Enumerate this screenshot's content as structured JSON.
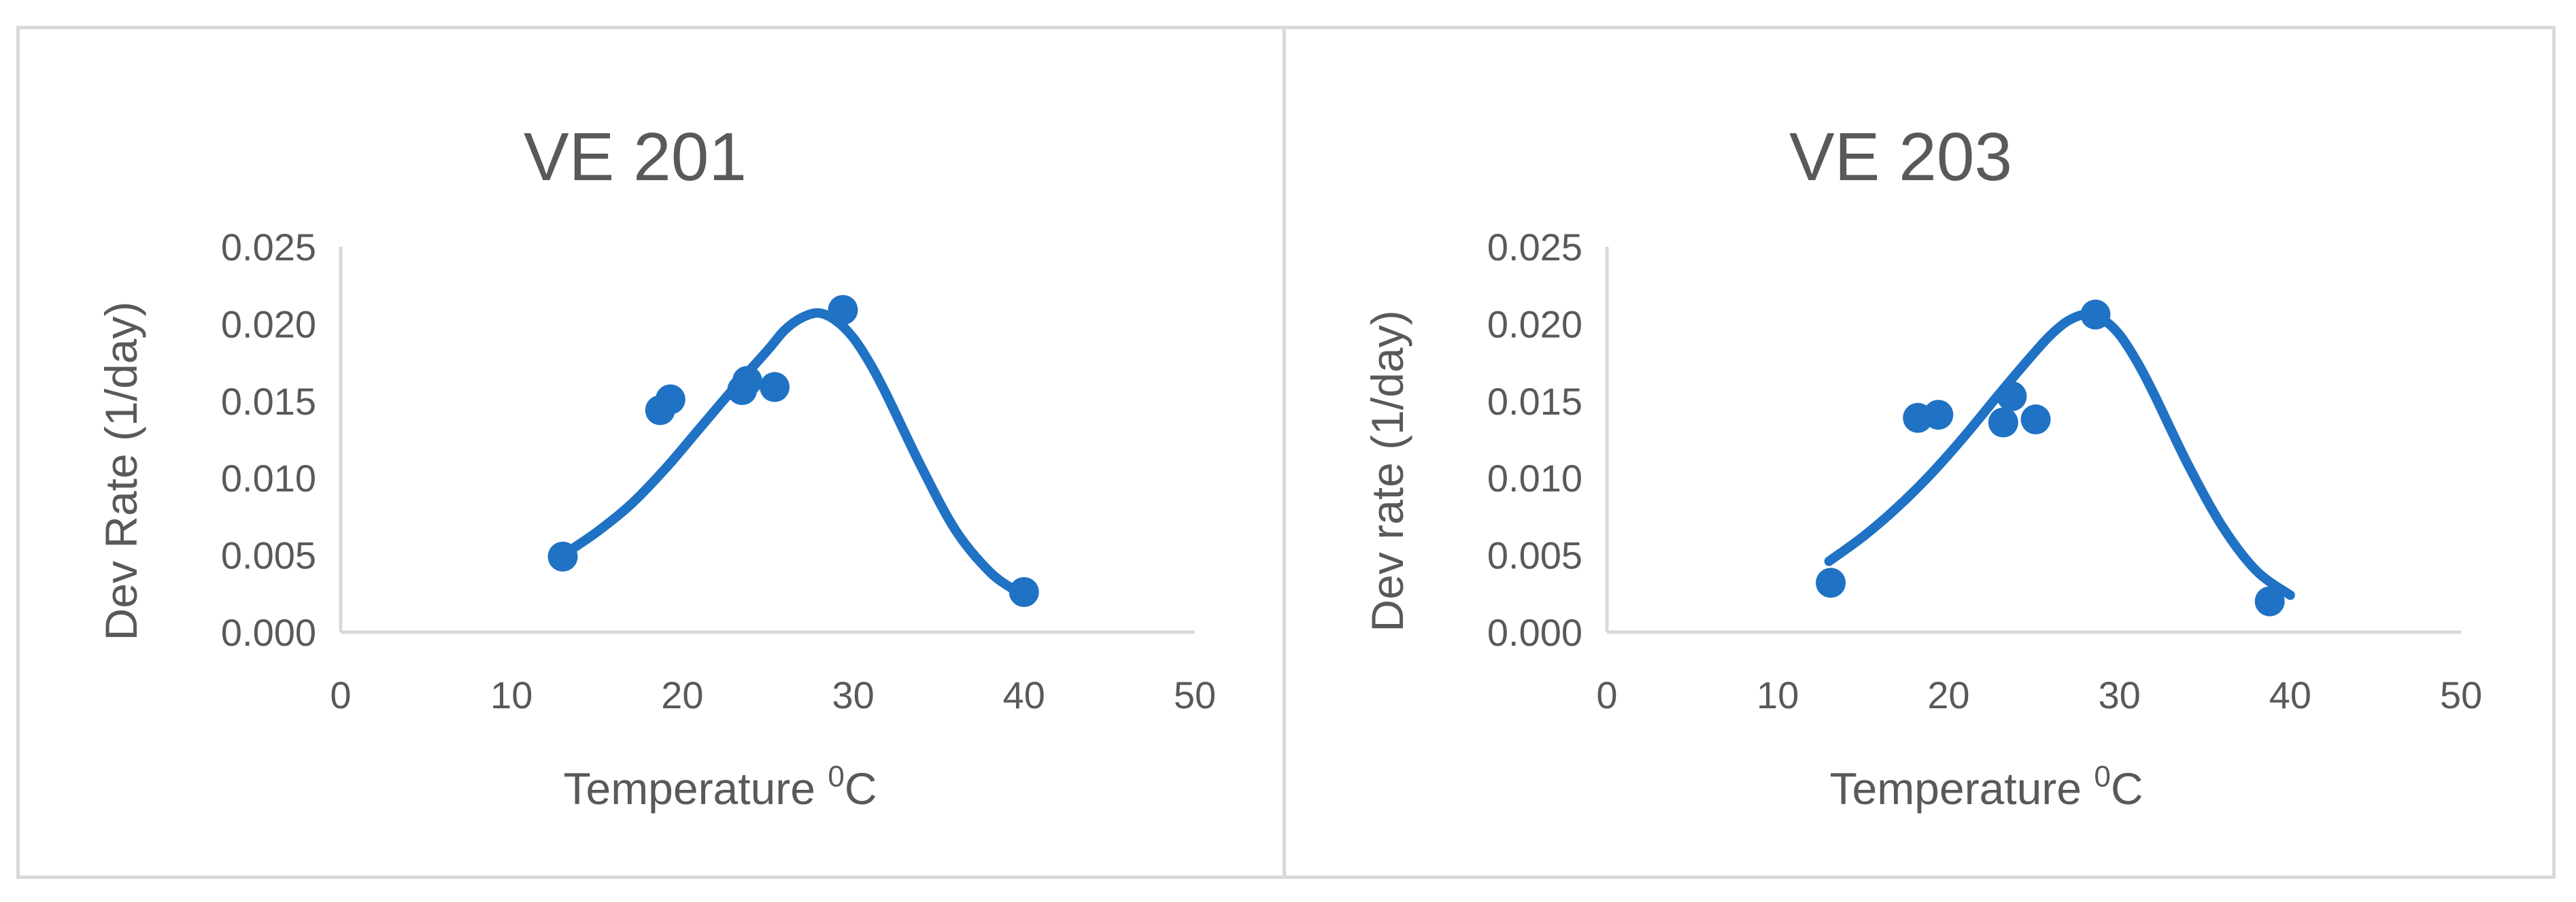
{
  "colors": {
    "series": "#1f72c4",
    "text": "#595959",
    "axis": "#d9d9d9",
    "border": "#d9d9d9"
  },
  "chart_data": [
    {
      "type": "scatter",
      "title": "VE 201",
      "xlabel": "Temperature",
      "xlabel_sup": "0",
      "xlabel_unit": "C",
      "ylabel": "Dev Rate (1/day)",
      "xlim": [
        0,
        50
      ],
      "ylim": [
        0,
        0.025
      ],
      "xticks": [
        "0",
        "10",
        "20",
        "30",
        "40",
        "50"
      ],
      "yticks": [
        "0.000",
        "0.005",
        "0.010",
        "0.015",
        "0.020",
        "0.025"
      ],
      "grid": false,
      "legend": "none",
      "points": [
        {
          "x": 13,
          "y": 0.0049
        },
        {
          "x": 18.7,
          "y": 0.0144
        },
        {
          "x": 19.3,
          "y": 0.0151
        },
        {
          "x": 23.5,
          "y": 0.0157
        },
        {
          "x": 23.8,
          "y": 0.0163
        },
        {
          "x": 25.4,
          "y": 0.0159
        },
        {
          "x": 29.4,
          "y": 0.0209
        },
        {
          "x": 40,
          "y": 0.0026
        }
      ],
      "fit_curve": {
        "x": [
          13,
          15,
          17,
          19,
          21,
          23,
          25,
          26,
          27,
          28,
          29,
          30,
          31,
          32,
          34,
          36,
          38,
          39.5
        ],
        "y": [
          0.005,
          0.0065,
          0.0083,
          0.0106,
          0.0132,
          0.0158,
          0.0183,
          0.0196,
          0.0204,
          0.0207,
          0.0202,
          0.0191,
          0.0174,
          0.0153,
          0.0107,
          0.0066,
          0.0039,
          0.0027
        ]
      }
    },
    {
      "type": "scatter",
      "title": "VE 203",
      "xlabel": "Temperature",
      "xlabel_sup": "0",
      "xlabel_unit": "C",
      "ylabel": "Dev rate (1/day)",
      "xlim": [
        0,
        50
      ],
      "ylim": [
        0,
        0.025
      ],
      "xticks": [
        "0",
        "10",
        "20",
        "30",
        "40",
        "50"
      ],
      "yticks": [
        "0.000",
        "0.005",
        "0.010",
        "0.015",
        "0.020",
        "0.025"
      ],
      "grid": false,
      "legend": "none",
      "points": [
        {
          "x": 13.1,
          "y": 0.0032
        },
        {
          "x": 18.2,
          "y": 0.0139
        },
        {
          "x": 19.4,
          "y": 0.0141
        },
        {
          "x": 23.2,
          "y": 0.0136
        },
        {
          "x": 23.7,
          "y": 0.0153
        },
        {
          "x": 25.1,
          "y": 0.0138
        },
        {
          "x": 28.6,
          "y": 0.0206
        },
        {
          "x": 38.8,
          "y": 0.002
        }
      ],
      "fit_curve": {
        "x": [
          13,
          15,
          17,
          19,
          21,
          23,
          25,
          26,
          27,
          28,
          29,
          30,
          31,
          32,
          34,
          36,
          38,
          40
        ],
        "y": [
          0.0046,
          0.0062,
          0.0081,
          0.0103,
          0.0128,
          0.0155,
          0.0181,
          0.0193,
          0.0202,
          0.0206,
          0.0203,
          0.0193,
          0.0176,
          0.0155,
          0.0109,
          0.0069,
          0.004,
          0.0024
        ]
      }
    }
  ]
}
